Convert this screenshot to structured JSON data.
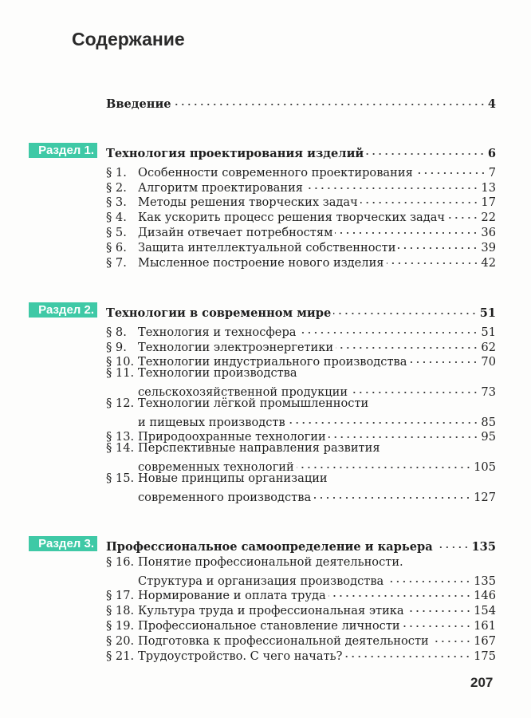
{
  "heading": "Содержание",
  "intro": {
    "title": "Введение",
    "page": "4"
  },
  "sections": [
    {
      "badge": "Раздел 1.",
      "title": "Технология проектирования изделий",
      "page": "6",
      "items": [
        {
          "num": "§ 1.",
          "lines": [
            "Особенности современного проектирования"
          ],
          "page": "7"
        },
        {
          "num": "§ 2.",
          "lines": [
            "Алгоритм проектирования"
          ],
          "page": "13"
        },
        {
          "num": "§ 3.",
          "lines": [
            "Методы решения творческих задач"
          ],
          "page": "17"
        },
        {
          "num": "§ 4.",
          "lines": [
            "Как ускорить процесс решения творческих задач"
          ],
          "page": "22"
        },
        {
          "num": "§ 5.",
          "lines": [
            "Дизайн отвечает потребностям"
          ],
          "page": "36"
        },
        {
          "num": "§ 6.",
          "lines": [
            "Защита интеллектуальной собственности"
          ],
          "page": "39"
        },
        {
          "num": "§ 7.",
          "lines": [
            "Мысленное построение нового изделия"
          ],
          "page": "42"
        }
      ]
    },
    {
      "badge": "Раздел 2.",
      "title": "Технологии в современном мире",
      "page": "51",
      "items": [
        {
          "num": "§ 8.",
          "lines": [
            "Технология и техносфера"
          ],
          "page": "51"
        },
        {
          "num": "§ 9.",
          "lines": [
            "Технологии электроэнергетики"
          ],
          "page": "62"
        },
        {
          "num": "§ 10.",
          "lines": [
            "Технологии индустриального производства"
          ],
          "page": "70"
        },
        {
          "num": "§ 11.",
          "lines": [
            "Технологии производства",
            "сельскохозяйственной продукции"
          ],
          "page": "73"
        },
        {
          "num": "§ 12.",
          "lines": [
            "Технологии лёгкой промышленности",
            "и пищевых производств"
          ],
          "page": "85"
        },
        {
          "num": "§ 13.",
          "lines": [
            "Природоохранные технологии"
          ],
          "page": "95"
        },
        {
          "num": "§ 14.",
          "lines": [
            "Перспективные направления развития",
            "современных технологий"
          ],
          "page": "105"
        },
        {
          "num": "§ 15.",
          "lines": [
            "Новые принципы организации",
            "современного производства"
          ],
          "page": "127"
        }
      ]
    },
    {
      "badge": "Раздел 3.",
      "title": "Профессиональное самоопределение и карьера",
      "page": "135",
      "items": [
        {
          "num": "§ 16.",
          "lines": [
            "Понятие профессиональной деятельности.",
            "Структура и организация производства"
          ],
          "page": "135"
        },
        {
          "num": "§ 17.",
          "lines": [
            "Нормирование и оплата труда"
          ],
          "page": "146"
        },
        {
          "num": "§ 18.",
          "lines": [
            "Культура труда и профессиональная этика"
          ],
          "page": "154"
        },
        {
          "num": "§ 19.",
          "lines": [
            "Профессиональное становление личности"
          ],
          "page": "161"
        },
        {
          "num": "§ 20.",
          "lines": [
            "Подготовка к профессиональной деятельности"
          ],
          "page": "167"
        },
        {
          "num": "§ 21.",
          "lines": [
            "Трудоустройство. С чего начать?"
          ],
          "page": "175"
        }
      ]
    }
  ],
  "page_number": "207",
  "colors": {
    "badge": "#3fc9a6",
    "text": "#1e1e1e"
  }
}
